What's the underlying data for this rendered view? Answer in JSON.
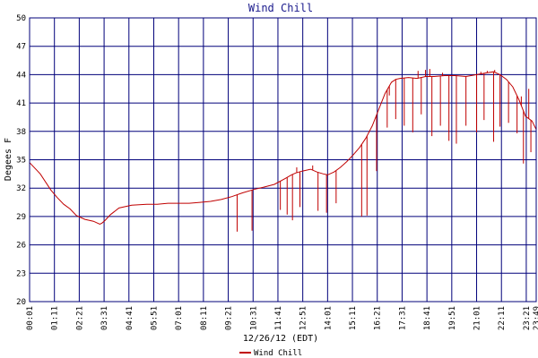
{
  "chart_data": {
    "type": "line",
    "title": "Wind Chill",
    "xlabel": "12/26/12 (EDT)",
    "ylabel": "Degees F",
    "ylim": [
      20,
      50
    ],
    "yticks": [
      20,
      23,
      26,
      29,
      32,
      35,
      38,
      41,
      44,
      47,
      50
    ],
    "xlim": [
      "00:01",
      "23:49"
    ],
    "xticks": [
      "00:01",
      "01:11",
      "02:21",
      "03:31",
      "04:41",
      "05:51",
      "07:01",
      "08:11",
      "09:21",
      "10:31",
      "11:41",
      "12:51",
      "14:01",
      "15:11",
      "16:21",
      "17:31",
      "18:41",
      "19:51",
      "21:01",
      "22:11",
      "23:21",
      "23:49"
    ],
    "grid": true,
    "legend": "bottom",
    "colors": {
      "series": "#c00000",
      "grid": "#00007a",
      "frame": "#00007a",
      "title": "#1a1a8c"
    },
    "series": [
      {
        "name": "Wind Chill",
        "x": [
          0.0,
          0.5,
          1.0,
          1.3,
          1.6,
          1.9,
          2.2,
          2.6,
          3.0,
          3.3,
          3.4,
          3.55,
          3.8,
          4.2,
          4.8,
          5.5,
          6.0,
          6.5,
          7.0,
          7.5,
          8.0,
          8.5,
          9.0,
          9.5,
          10.0,
          10.6,
          11.0,
          11.5,
          12.0,
          12.3,
          12.5,
          12.8,
          13.2,
          13.5,
          13.8,
          14.0,
          14.3,
          14.6,
          14.9,
          15.2,
          15.5,
          15.8,
          16.1,
          16.4,
          16.7,
          17.0,
          17.2,
          17.4,
          17.8,
          18.2,
          18.6,
          19.0,
          19.5,
          20.0,
          20.5,
          21.0,
          21.5,
          21.8,
          22.1,
          22.4,
          22.7,
          23.0,
          23.3,
          23.6,
          23.8
        ],
        "values": [
          34.7,
          33.5,
          31.8,
          31.0,
          30.3,
          29.8,
          29.1,
          28.7,
          28.5,
          28.2,
          28.3,
          28.6,
          29.2,
          29.9,
          30.2,
          30.3,
          30.3,
          30.4,
          30.4,
          30.4,
          30.5,
          30.6,
          30.8,
          31.1,
          31.5,
          31.9,
          32.1,
          32.4,
          33.0,
          33.4,
          33.6,
          33.8,
          34.0,
          33.7,
          33.5,
          33.4,
          33.7,
          34.2,
          34.8,
          35.5,
          36.3,
          37.3,
          38.6,
          40.3,
          42.0,
          43.2,
          43.5,
          43.6,
          43.7,
          43.6,
          43.8,
          43.8,
          43.9,
          43.9,
          43.8,
          44.0,
          44.2,
          44.3,
          44.0,
          43.5,
          42.7,
          41.3,
          39.6,
          39.1,
          38.2
        ],
        "spike_min_x": [
          9.75,
          10.45,
          11.78,
          12.1,
          12.35,
          12.7,
          13.55,
          13.95,
          14.4,
          15.6,
          15.85,
          16.3,
          16.8,
          17.2,
          17.6,
          18.0,
          18.4,
          18.9,
          19.3,
          19.7,
          20.05,
          20.5,
          21.0,
          21.35,
          21.8,
          22.1,
          22.5,
          22.9,
          23.2,
          23.55
        ],
        "spike_min_y": [
          27.4,
          27.5,
          29.7,
          29.2,
          28.6,
          30.0,
          29.6,
          29.4,
          30.4,
          29.0,
          29.1,
          33.8,
          38.4,
          39.3,
          38.6,
          37.9,
          39.8,
          37.5,
          38.6,
          37.0,
          36.7,
          38.6,
          37.9,
          39.2,
          36.9,
          38.5,
          38.9,
          37.8,
          34.6,
          35.8
        ],
        "spike_max_x": [
          12.55,
          13.3,
          16.9,
          17.5,
          18.25,
          18.6,
          18.8,
          19.4,
          21.2,
          21.5,
          21.85,
          23.1,
          23.45
        ],
        "spike_max_y": [
          34.2,
          34.4,
          41.8,
          43.7,
          44.4,
          44.5,
          44.6,
          44.2,
          44.3,
          44.4,
          44.5,
          41.7,
          42.5
        ]
      }
    ]
  }
}
